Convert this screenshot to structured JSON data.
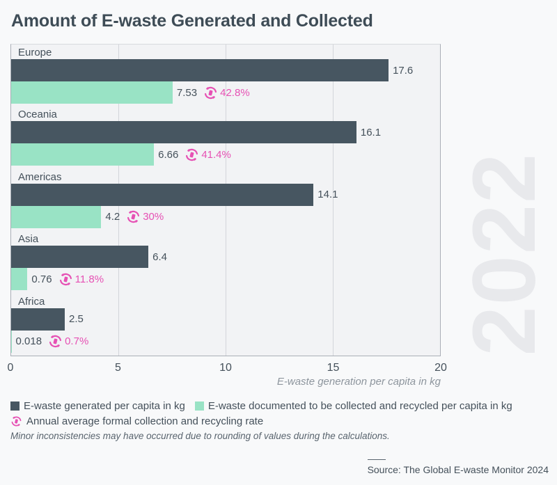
{
  "title": "Amount of E-waste Generated and Collected",
  "watermark": "2022",
  "chart_data": {
    "type": "bar",
    "orientation": "horizontal",
    "title": "Amount of E-waste Generated and Collected",
    "categories": [
      "Europe",
      "Oceania",
      "Americas",
      "Asia",
      "Africa"
    ],
    "series": [
      {
        "name": "E-waste generated per capita in kg",
        "values": [
          17.6,
          16.1,
          14.1,
          6.4,
          2.5
        ]
      },
      {
        "name": "E-waste documented to be collected and recycled per capita in kg",
        "values": [
          7.53,
          6.66,
          4.2,
          0.76,
          0.018
        ]
      },
      {
        "name": "Annual average formal collection and recycling rate",
        "values": [
          42.8,
          41.4,
          30,
          11.8,
          0.7
        ],
        "unit": "%"
      }
    ],
    "regions": [
      {
        "name": "Europe",
        "generated": 17.6,
        "generated_label": "17.6",
        "collected": 7.53,
        "collected_label": "7.53",
        "rate": "42.8%"
      },
      {
        "name": "Oceania",
        "generated": 16.1,
        "generated_label": "16.1",
        "collected": 6.66,
        "collected_label": "6.66",
        "rate": "41.4%"
      },
      {
        "name": "Americas",
        "generated": 14.1,
        "generated_label": "14.1",
        "collected": 4.2,
        "collected_label": "4.2",
        "rate": "30%"
      },
      {
        "name": "Asia",
        "generated": 6.4,
        "generated_label": "6.4",
        "collected": 0.76,
        "collected_label": "0.76",
        "rate": "11.8%"
      },
      {
        "name": "Africa",
        "generated": 2.5,
        "generated_label": "2.5",
        "collected": 0.018,
        "collected_label": "0.018",
        "rate": "0.7%"
      }
    ],
    "xlabel": "E-waste generation per capita in kg",
    "ylabel": "",
    "xlim": [
      0,
      20
    ],
    "x_ticks": [
      "0",
      "5",
      "10",
      "15",
      "20"
    ],
    "grid_ticks": [
      5,
      10,
      15
    ],
    "grid": "vertical",
    "legend_position": "bottom"
  },
  "legend": {
    "items": [
      {
        "swatch": "generated",
        "label": "E-waste generated per capita in kg"
      },
      {
        "swatch": "collected",
        "label": "E-waste documented to be collected and recycled per capita in kg"
      },
      {
        "swatch": "rate-icon",
        "label": "Annual average formal collection and recycling rate"
      }
    ]
  },
  "note": "Minor inconsistencies may have occurred due to rounding of values during the calculations.",
  "source": {
    "label": "Source: The Global E-waste Monitor 2024"
  },
  "colors": {
    "generated": "#475661",
    "collected": "#99e3c5",
    "rate": "#e651b4",
    "watermark": "#e8e9ec",
    "plot_background": "#f2f3f5",
    "page_background": "#f8f9fa",
    "text": "#44505a"
  }
}
